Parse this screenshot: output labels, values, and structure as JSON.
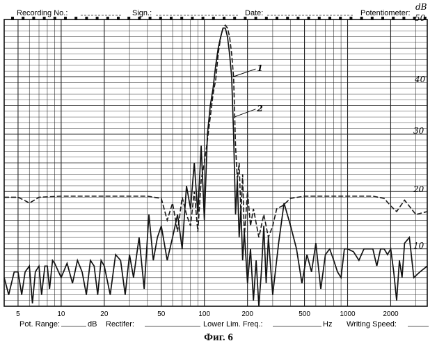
{
  "header": {
    "recording_no": "Recording No.:",
    "sign": "Sign.:",
    "date": "Date:",
    "potentiometer": "Potentiometer:",
    "unit": "dB"
  },
  "footer": {
    "pot_range": "Pot. Range:",
    "pot_range_unit": "dB",
    "rectifier": "Rectifer:",
    "lower_lim_freq": "Lower Lim. Freq.:",
    "lower_lim_unit": "Hz",
    "writing_speed": "Writing Speed:"
  },
  "caption": "Фиг. 6",
  "chart_data": {
    "type": "line",
    "title": "",
    "xlabel": "",
    "ylabel": "dB",
    "x_scale": "log",
    "xlim": [
      4,
      3600
    ],
    "ylim": [
      0,
      50
    ],
    "grid": true,
    "x_ticks": [
      {
        "value": 5,
        "label": "5"
      },
      {
        "value": 10,
        "label": "10"
      },
      {
        "value": 20,
        "label": "20"
      },
      {
        "value": 50,
        "label": "50"
      },
      {
        "value": 100,
        "label": "100"
      },
      {
        "value": 200,
        "label": "200"
      },
      {
        "value": 500,
        "label": "500"
      },
      {
        "value": 1000,
        "label": "1000"
      },
      {
        "value": 2000,
        "label": "2000"
      }
    ],
    "y_ticks": [
      {
        "value": 10,
        "label": "10"
      },
      {
        "value": 20,
        "label": "20"
      },
      {
        "value": 30,
        "label": "30"
      },
      {
        "value": 40,
        "label": "40"
      },
      {
        "value": 50,
        "label": "50"
      }
    ],
    "annotations": [
      {
        "label": "1",
        "x": 195,
        "y": 41
      },
      {
        "label": "2",
        "x": 195,
        "y": 34
      }
    ],
    "series": [
      {
        "name": "1",
        "style": "dashed",
        "x": [
          4,
          5,
          5.5,
          6,
          6.5,
          7,
          10,
          20,
          40,
          50,
          55,
          60,
          65,
          70,
          75,
          80,
          85,
          90,
          95,
          100,
          105,
          110,
          115,
          120,
          125,
          130,
          135,
          140,
          145,
          150,
          155,
          160,
          165,
          170,
          175,
          180,
          185,
          190,
          200,
          210,
          220,
          240,
          260,
          280,
          300,
          320,
          350,
          400,
          500,
          700,
          1000,
          1500,
          1800,
          2000,
          2200,
          2500,
          3000,
          3600
        ],
        "y": [
          19,
          19,
          18.5,
          18,
          18.5,
          19,
          19.2,
          19.2,
          19.2,
          18.8,
          15,
          18,
          13,
          19,
          16,
          14,
          20,
          13,
          22,
          25,
          29,
          33,
          37,
          39.5,
          44,
          47,
          48.5,
          49,
          48.5,
          47,
          44,
          40,
          28,
          22,
          25,
          16,
          23,
          12,
          20,
          14,
          17,
          12,
          16,
          12,
          14,
          17,
          17.5,
          18.8,
          19.2,
          19.2,
          19.2,
          19.2,
          18.8,
          17.5,
          16.5,
          18.5,
          16,
          16.5
        ]
      },
      {
        "name": "2",
        "style": "solid",
        "x": [
          4,
          4.3,
          4.7,
          5,
          5.3,
          5.6,
          6,
          6.3,
          6.6,
          7,
          7.3,
          7.7,
          8,
          8.3,
          8.7,
          9,
          10,
          11,
          12,
          13,
          14,
          15,
          16,
          17,
          18,
          19,
          20,
          22,
          24,
          26,
          28,
          30,
          32,
          35,
          38,
          41,
          44,
          47,
          50,
          55,
          60,
          65,
          70,
          75,
          80,
          85,
          90,
          95,
          100,
          105,
          110,
          115,
          120,
          125,
          130,
          135,
          140,
          145,
          150,
          155,
          160,
          165,
          170,
          175,
          180,
          185,
          190,
          200,
          210,
          220,
          230,
          240,
          250,
          260,
          270,
          280,
          300,
          330,
          360,
          400,
          440,
          480,
          520,
          560,
          600,
          650,
          700,
          750,
          800,
          850,
          900,
          950,
          1000,
          1100,
          1200,
          1300,
          1400,
          1500,
          1600,
          1700,
          1800,
          1900,
          2000,
          2100,
          2200,
          2300,
          2400,
          2500,
          2700,
          2900,
          3200,
          3600
        ],
        "y": [
          5,
          2,
          6,
          6,
          2,
          6,
          7,
          0.5,
          6,
          7,
          2,
          7,
          7,
          3,
          8,
          7.5,
          5,
          7.5,
          4,
          8,
          6,
          2,
          8,
          7,
          2,
          8,
          7,
          2,
          9,
          8,
          2,
          9,
          5,
          12,
          3,
          16,
          8,
          12,
          14,
          8,
          12,
          16,
          10,
          21,
          17,
          25,
          16,
          28,
          15,
          30,
          35,
          38,
          42,
          45,
          47,
          48.5,
          48.5,
          47,
          44,
          40,
          30,
          16,
          22,
          12,
          17,
          8,
          13,
          4,
          10,
          1,
          8,
          0,
          6,
          14,
          4,
          12,
          2,
          11,
          18,
          14,
          10,
          4,
          9,
          6,
          11,
          3,
          9,
          10,
          8,
          6,
          5,
          10,
          10,
          9.5,
          8,
          10,
          10,
          10,
          7,
          10,
          10,
          9,
          10,
          6,
          1,
          8,
          5,
          11,
          12,
          5,
          6,
          7
        ]
      }
    ]
  }
}
